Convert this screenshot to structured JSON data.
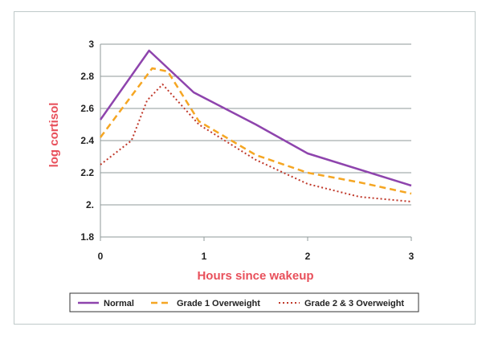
{
  "chart_data": {
    "type": "line",
    "title": "",
    "xlabel": "Hours since wakeup",
    "ylabel": "log cortisol",
    "xlim": [
      0,
      3
    ],
    "ylim": [
      1.8,
      3.0
    ],
    "x_ticks": [
      {
        "value": 0,
        "label": "0"
      },
      {
        "value": 1,
        "label": "1"
      },
      {
        "value": 2,
        "label": "2"
      },
      {
        "value": 3,
        "label": "3"
      }
    ],
    "y_ticks": [
      {
        "value": 1.8,
        "label": "1.8"
      },
      {
        "value": 2.0,
        "label": "2."
      },
      {
        "value": 2.2,
        "label": "2.2"
      },
      {
        "value": 2.4,
        "label": "2.4"
      },
      {
        "value": 2.6,
        "label": "2.6"
      },
      {
        "value": 2.8,
        "label": "2.8"
      },
      {
        "value": 3.0,
        "label": "3"
      }
    ],
    "grid": "horizontal",
    "legend_position": "bottom",
    "axis_title_color": "#e8505b",
    "series": [
      {
        "name": "Normal",
        "color": "#8e44ad",
        "style": "solid",
        "points": [
          [
            0,
            2.53
          ],
          [
            0.47,
            2.96
          ],
          [
            0.9,
            2.7
          ],
          [
            1.5,
            2.5
          ],
          [
            2,
            2.32
          ],
          [
            3,
            2.12
          ]
        ]
      },
      {
        "name": "Grade 1 Overweight",
        "color": "#f5a623",
        "style": "dashed",
        "points": [
          [
            0,
            2.42
          ],
          [
            0.5,
            2.85
          ],
          [
            0.65,
            2.83
          ],
          [
            0.95,
            2.52
          ],
          [
            1.5,
            2.31
          ],
          [
            2,
            2.2
          ],
          [
            2.5,
            2.14
          ],
          [
            3,
            2.07
          ]
        ]
      },
      {
        "name": "Grade 2 & 3 Overweight",
        "color": "#c0392b",
        "style": "dotted",
        "points": [
          [
            0,
            2.25
          ],
          [
            0.3,
            2.4
          ],
          [
            0.45,
            2.65
          ],
          [
            0.6,
            2.75
          ],
          [
            0.95,
            2.5
          ],
          [
            1.5,
            2.28
          ],
          [
            2,
            2.13
          ],
          [
            2.5,
            2.05
          ],
          [
            3,
            2.02
          ]
        ]
      }
    ]
  }
}
